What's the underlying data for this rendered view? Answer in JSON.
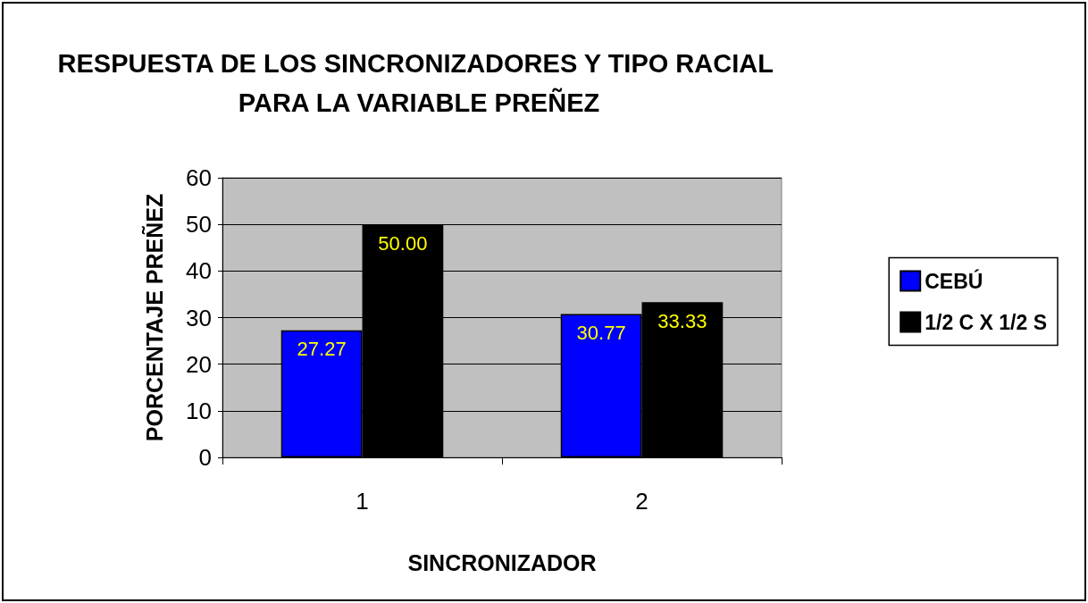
{
  "chart_data": {
    "type": "bar",
    "title": "RESPUESTA DE LOS SINCRONIZADORES Y TIPO RACIAL PARA LA VARIABLE PREÑEZ",
    "xlabel": "SINCRONIZADOR",
    "ylabel": "PORCENTAJE PREÑEZ",
    "categories": [
      "1",
      "2"
    ],
    "series": [
      {
        "name": "CEBÚ",
        "color": "#0000ff",
        "values": [
          27.27,
          30.77
        ]
      },
      {
        "name": "1/2 C X 1/2 S",
        "color": "#000000",
        "values": [
          50.0,
          33.33
        ]
      }
    ],
    "value_labels": [
      [
        "27.27",
        "30.77"
      ],
      [
        "50.00",
        "33.33"
      ]
    ],
    "ylim": [
      0,
      60
    ],
    "yticks": [
      0,
      10,
      20,
      30,
      40,
      50,
      60
    ],
    "grid": "y",
    "legend": "right"
  }
}
